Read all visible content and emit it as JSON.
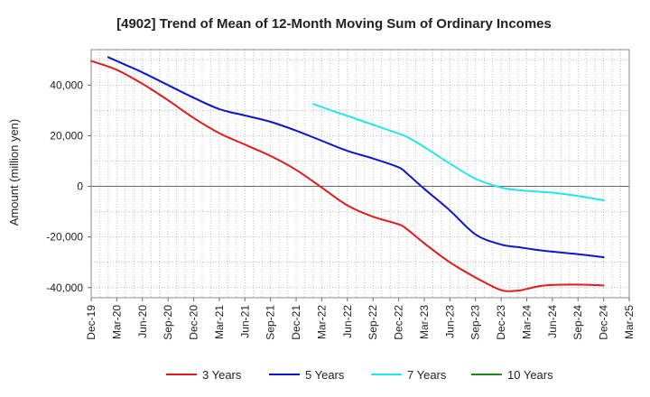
{
  "chart_data": {
    "type": "line",
    "title": "[4902]  Trend of Mean of 12-Month Moving Sum of Ordinary Incomes",
    "ylabel": "Amount (million yen)",
    "xlabel": "",
    "ylim": [
      -44000,
      54000
    ],
    "y_ticks": [
      -40000,
      -20000,
      0,
      20000,
      40000
    ],
    "y_tick_labels": [
      "-40,000",
      "-20,000",
      "0",
      "20,000",
      "40,000"
    ],
    "x_tick_labels": [
      "Dec-19",
      "Mar-20",
      "Jun-20",
      "Sep-20",
      "Dec-20",
      "Mar-21",
      "Jun-21",
      "Sep-21",
      "Dec-21",
      "Mar-22",
      "Jun-22",
      "Sep-22",
      "Dec-22",
      "Mar-23",
      "Jun-23",
      "Sep-23",
      "Dec-23",
      "Mar-24",
      "Jun-24",
      "Sep-24",
      "Dec-24",
      "Mar-25"
    ],
    "x_range": [
      0,
      63
    ],
    "grid": true,
    "legend_position": "bottom",
    "series": [
      {
        "name": "3 Years",
        "color": "#e31a1c",
        "x": [
          0,
          3,
          6,
          9,
          12,
          15,
          18,
          21,
          24,
          27,
          30,
          33,
          36,
          37,
          39,
          42,
          45,
          48,
          50,
          51,
          53,
          56,
          59,
          60
        ],
        "y": [
          49500,
          46000,
          40500,
          34000,
          27000,
          21000,
          16500,
          12000,
          6500,
          -500,
          -7500,
          -12000,
          -15000,
          -17000,
          -22500,
          -30000,
          -36000,
          -41000,
          -41200,
          -40500,
          -39200,
          -38800,
          -39000,
          -39200
        ]
      },
      {
        "name": "5 Years",
        "color": "#0a17cc",
        "x": [
          2,
          4,
          6,
          9,
          12,
          15,
          18,
          21,
          24,
          27,
          30,
          33,
          36,
          37,
          39,
          42,
          45,
          48,
          50,
          52,
          54,
          57,
          60
        ],
        "y": [
          51000,
          48000,
          45000,
          40000,
          35000,
          30500,
          28000,
          25500,
          22000,
          18000,
          14000,
          11000,
          7500,
          5000,
          -1000,
          -9500,
          -19000,
          -23000,
          -24000,
          -25000,
          -25800,
          -26800,
          -28000
        ]
      },
      {
        "name": "7 Years",
        "color": "#22e5ee",
        "x": [
          26,
          29,
          32,
          35,
          37,
          39,
          42,
          45,
          48,
          50,
          54,
          57,
          60
        ],
        "y": [
          32500,
          29000,
          25500,
          22000,
          19500,
          15500,
          9000,
          3000,
          -500,
          -1500,
          -2500,
          -3800,
          -5500
        ]
      },
      {
        "name": "10 Years",
        "color": "#1a8a1a",
        "x": [],
        "y": []
      }
    ]
  }
}
